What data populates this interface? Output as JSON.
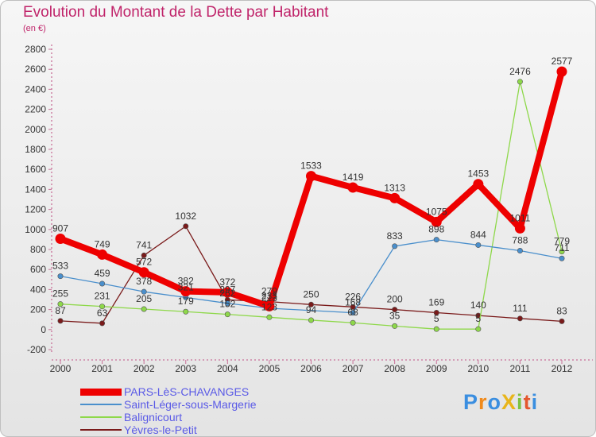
{
  "title": "Evolution du Montant de la Dette par Habitant",
  "subtitle": "(en €)",
  "logo": {
    "text": "ProXiti",
    "colors": [
      "#3a8ee0",
      "#f08a1c",
      "#3a8ee0",
      "#e8b51a",
      "#7cc242",
      "#e4572e",
      "#3a8ee0"
    ]
  },
  "chart_data": {
    "type": "line",
    "x": [
      "2000",
      "2001",
      "2002",
      "2003",
      "2004",
      "2005",
      "2006",
      "2007",
      "2008",
      "2009",
      "2010",
      "2011",
      "2012"
    ],
    "ylim": [
      -200,
      2800
    ],
    "yticks": [
      -200,
      0,
      200,
      400,
      600,
      800,
      1000,
      1200,
      1400,
      1600,
      1800,
      2000,
      2200,
      2400,
      2600,
      2800
    ],
    "grid": false,
    "legend_position": "bottom-left",
    "series": [
      {
        "name": "PARS-LèS-CHAVANGES",
        "color": "#ee0000",
        "values": [
          907,
          749,
          572,
          382,
          372,
          233,
          1533,
          1419,
          1313,
          1075,
          1453,
          1011,
          2577
        ],
        "labels": [
          "907",
          "749",
          "572",
          "382",
          "372",
          "233",
          "1533",
          "1419",
          "1313",
          "1075",
          "1453",
          "1011",
          "2577"
        ]
      },
      {
        "name": "Saint-Léger-sous-Margerie",
        "color": "#4a8fcc",
        "values": [
          533,
          459,
          378,
          321,
          262,
          213,
          null,
          168,
          833,
          898,
          844,
          788,
          711
        ],
        "labels": [
          "533",
          "459",
          "378",
          "321",
          "262",
          "213",
          "",
          "168",
          "833",
          "898",
          "844",
          "788",
          "711"
        ]
      },
      {
        "name": "Balignicourt",
        "color": "#8ed84a",
        "values": [
          255,
          231,
          205,
          179,
          152,
          123,
          94,
          68,
          35,
          5,
          5,
          2476,
          779
        ],
        "labels": [
          "255",
          "231",
          "205",
          "179",
          "152",
          "123",
          "94",
          "68",
          "35",
          "5",
          "5",
          "2476",
          "779"
        ]
      },
      {
        "name": "Yèvres-le-Petit",
        "color": "#7a1a1a",
        "values": [
          87,
          63,
          741,
          1032,
          297,
          279,
          250,
          226,
          200,
          169,
          140,
          111,
          83
        ],
        "labels": [
          "87",
          "63",
          "741",
          "1032",
          "297",
          "279",
          "250",
          "226",
          "200",
          "169",
          "140",
          "111",
          "83"
        ]
      }
    ]
  }
}
